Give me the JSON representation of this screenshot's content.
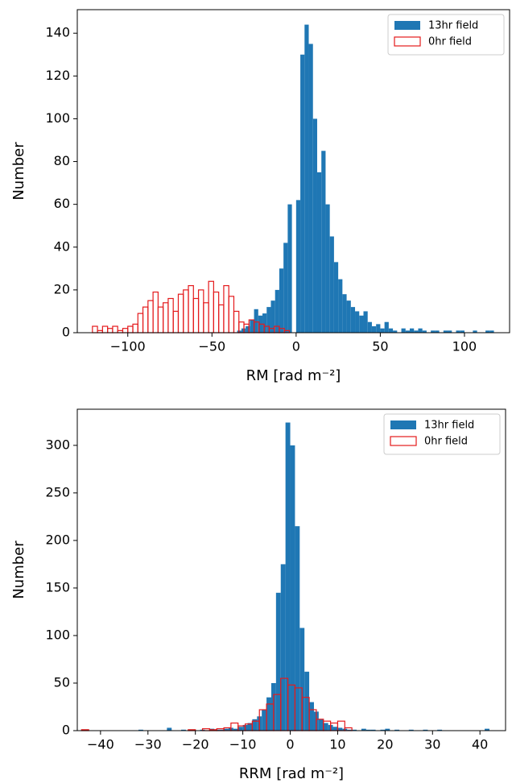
{
  "chart_data": [
    {
      "type": "histogram",
      "xlabel": "RM [rad m⁻²]",
      "ylabel": "Number",
      "xlim": [
        -130,
        126.8
      ],
      "ylim": [
        0,
        151
      ],
      "xticks": [
        {
          "value": -100,
          "label": "−100"
        },
        {
          "value": -50,
          "label": "−50"
        },
        0,
        50,
        100
      ],
      "yticks": [
        0,
        20,
        40,
        60,
        80,
        100,
        120,
        140
      ],
      "legend": "upper right",
      "series": [
        {
          "name": "13hr field",
          "color": "#1f77b4",
          "style": "filled",
          "bins": [
            -37.5,
            -35,
            -32.5,
            -30,
            -27.5,
            -25,
            -22.5,
            -20,
            -17.5,
            -15,
            -12.5,
            -10,
            -7.5,
            -5,
            -2.5,
            0,
            2.5,
            5,
            7.5,
            10,
            12.5,
            15,
            17.5,
            20,
            22.5,
            25,
            27.5,
            30,
            32.5,
            35,
            37.5,
            40,
            42.5,
            45,
            47.5,
            50,
            52.5,
            55,
            57.5,
            60,
            62.5,
            65,
            67.5,
            70,
            72.5,
            75,
            77.5,
            80,
            82.5,
            85,
            87.5,
            90,
            92.5,
            95,
            97.5,
            100,
            102.5,
            105,
            107.5,
            110,
            112.5,
            115,
            117.5
          ],
          "values": [
            0,
            1,
            2,
            3,
            6,
            11,
            8,
            9,
            12,
            15,
            20,
            30,
            42,
            60,
            0,
            62,
            130,
            144,
            135,
            100,
            75,
            85,
            60,
            45,
            33,
            25,
            18,
            15,
            12,
            10,
            8,
            10,
            5,
            3,
            4,
            2,
            5,
            2,
            1,
            0,
            2,
            1,
            2,
            1,
            2,
            1,
            0,
            1,
            1,
            0,
            1,
            1,
            0,
            1,
            1,
            0,
            0,
            1,
            0,
            0,
            1,
            1
          ]
        },
        {
          "name": "0hr field",
          "color": "#e41a1c",
          "style": "outline",
          "bins": [
            -121,
            -118,
            -115,
            -112,
            -109,
            -106,
            -103,
            -100,
            -97,
            -94,
            -91,
            -88,
            -85,
            -82,
            -79,
            -76,
            -73,
            -70,
            -67,
            -64,
            -61,
            -58,
            -55,
            -52,
            -49,
            -46,
            -43,
            -40,
            -37,
            -34,
            -31,
            -28,
            -25,
            -22,
            -19,
            -16,
            -13,
            -10,
            -7,
            -4,
            -1
          ],
          "values": [
            3,
            1,
            3,
            2,
            3,
            1,
            2,
            3,
            4,
            9,
            12,
            15,
            19,
            12,
            14,
            16,
            10,
            18,
            20,
            22,
            16,
            20,
            14,
            24,
            19,
            13,
            22,
            17,
            10,
            5,
            4,
            6,
            5,
            4,
            3,
            2,
            3,
            2,
            1,
            0
          ]
        }
      ]
    },
    {
      "type": "histogram",
      "xlabel": "RRM [rad m⁻²]",
      "ylabel": "Number",
      "xlim": [
        -44.9,
        45.4
      ],
      "ylim": [
        0,
        338
      ],
      "xticks": [
        {
          "value": -40,
          "label": "−40"
        },
        {
          "value": -30,
          "label": "−30"
        },
        {
          "value": -20,
          "label": "−20"
        },
        {
          "value": -10,
          "label": "−10"
        },
        0,
        10,
        20,
        30,
        40
      ],
      "yticks": [
        0,
        50,
        100,
        150,
        200,
        250,
        300
      ],
      "legend": "upper right",
      "series": [
        {
          "name": "13hr field",
          "color": "#1f77b4",
          "style": "filled",
          "bins": [
            -44,
            -43,
            -42,
            -41,
            -40,
            -39,
            -38,
            -37,
            -36,
            -35,
            -34,
            -33,
            -32,
            -31,
            -30,
            -29,
            -28,
            -27,
            -26,
            -25,
            -24,
            -23,
            -22,
            -21,
            -20,
            -19,
            -18,
            -17,
            -16,
            -15,
            -14,
            -13,
            -12,
            -11,
            -10,
            -9,
            -8,
            -7,
            -6,
            -5,
            -4,
            -3,
            -2,
            -1,
            0,
            1,
            2,
            3,
            4,
            5,
            6,
            7,
            8,
            9,
            10,
            11,
            12,
            13,
            14,
            15,
            16,
            17,
            18,
            19,
            20,
            21,
            22,
            23,
            24,
            25,
            26,
            27,
            28,
            29,
            30,
            31,
            32,
            33,
            34,
            35,
            36,
            37,
            38,
            39,
            40,
            41,
            42
          ],
          "values": [
            1,
            0,
            0,
            0,
            0,
            0,
            0,
            0,
            0,
            0,
            0,
            0,
            1,
            0,
            0,
            0,
            0,
            0,
            3,
            0,
            0,
            1,
            0,
            1,
            0,
            1,
            0,
            2,
            1,
            1,
            2,
            3,
            2,
            4,
            6,
            8,
            12,
            15,
            22,
            35,
            50,
            145,
            175,
            324,
            300,
            215,
            108,
            62,
            30,
            20,
            12,
            8,
            6,
            4,
            3,
            2,
            1,
            1,
            0,
            2,
            1,
            1,
            0,
            1,
            2,
            0,
            1,
            0,
            0,
            1,
            0,
            0,
            1,
            0,
            0,
            1,
            0,
            0,
            0,
            0,
            0,
            0,
            0,
            0,
            0,
            2
          ]
        },
        {
          "name": "0hr field",
          "color": "#e41a1c",
          "style": "outline",
          "bins": [
            -44,
            -42.5,
            -41,
            -39.5,
            -38,
            -36.5,
            -35,
            -33.5,
            -32,
            -30.5,
            -29,
            -27.5,
            -26,
            -24.5,
            -23,
            -21.5,
            -20,
            -18.5,
            -17,
            -15.5,
            -14,
            -12.5,
            -11,
            -9.5,
            -8,
            -6.5,
            -5,
            -3.5,
            -2,
            -0.5,
            1,
            2.5,
            4,
            5.5,
            7,
            8.5,
            10,
            11.5,
            13
          ],
          "values": [
            1,
            0,
            0,
            0,
            0,
            0,
            0,
            0,
            0,
            0,
            0,
            0,
            0,
            0,
            0,
            1,
            0,
            2,
            1,
            2,
            3,
            8,
            5,
            7,
            10,
            22,
            28,
            38,
            55,
            48,
            45,
            35,
            22,
            12,
            10,
            8,
            10,
            3
          ]
        }
      ]
    }
  ]
}
